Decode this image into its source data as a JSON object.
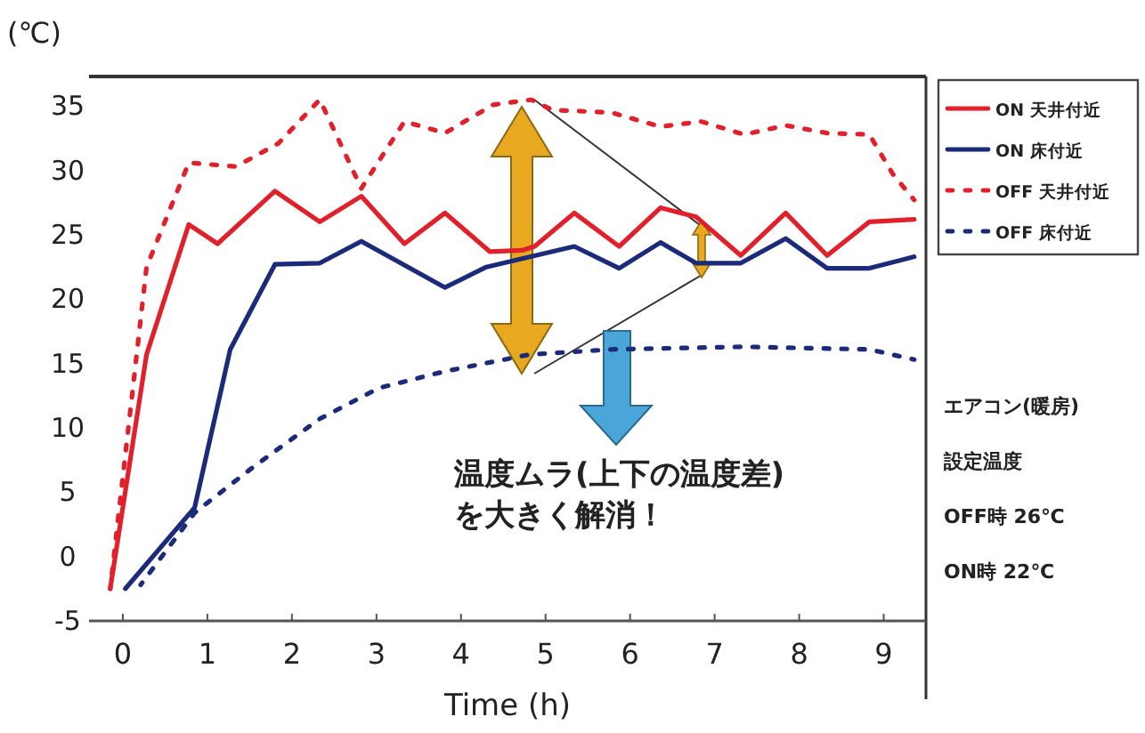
{
  "chart_data": {
    "type": "line",
    "ylabel": "(℃)",
    "xlabel": "Time (h)",
    "xlim": [
      -0.4,
      9.5
    ],
    "xticks": [
      0,
      1,
      2,
      3,
      4,
      5,
      6,
      7,
      8,
      9
    ],
    "ylim": [
      -5,
      37.3
    ],
    "yticks": [
      -5,
      0,
      5,
      10,
      15,
      20,
      25,
      30,
      35
    ],
    "grid": false,
    "legend": "right",
    "marker": "none",
    "series": [
      {
        "name": "ON 天井付近",
        "color": "#e0202a",
        "line_style": "solid",
        "x": [
          -0.15,
          0.28,
          0.78,
          1.12,
          1.8,
          2.33,
          2.82,
          3.33,
          3.81,
          4.34,
          4.72,
          4.87,
          5.34,
          5.87,
          6.36,
          6.78,
          7.31,
          7.84,
          8.33,
          8.83,
          9.36
        ],
        "values": [
          -2.5,
          15.7,
          25.8,
          24.3,
          28.4,
          26.0,
          28.0,
          24.3,
          26.7,
          23.7,
          23.8,
          24.1,
          26.7,
          24.1,
          27.1,
          26.4,
          23.4,
          26.7,
          23.4,
          26.0,
          26.2
        ]
      },
      {
        "name": "ON 床付近",
        "color": "#1c2a7a",
        "line_style": "solid",
        "x": [
          0.03,
          0.85,
          1.27,
          1.8,
          2.33,
          2.82,
          3.81,
          4.3,
          5.08,
          5.34,
          5.87,
          6.36,
          6.78,
          7.31,
          7.84,
          8.33,
          8.83,
          9.36
        ],
        "values": [
          -2.5,
          3.8,
          16.1,
          22.7,
          22.8,
          24.5,
          20.9,
          22.5,
          23.7,
          24.1,
          22.4,
          24.4,
          22.8,
          22.8,
          24.7,
          22.4,
          22.4,
          23.3
        ]
      },
      {
        "name": "OFF 天井付近",
        "color": "#e0202a",
        "line_style": "dotted",
        "x": [
          -0.15,
          0,
          0.28,
          0.78,
          1.34,
          1.84,
          2.33,
          2.82,
          3.33,
          3.81,
          4.38,
          4.83,
          5.08,
          5.78,
          6.36,
          6.84,
          7.35,
          7.84,
          8.33,
          8.83,
          9.11,
          9.36
        ],
        "values": [
          -2.5,
          6.2,
          22.5,
          30.6,
          30.3,
          32.1,
          35.5,
          28.6,
          33.8,
          32.9,
          35.1,
          35.5,
          34.7,
          34.5,
          33.4,
          33.8,
          32.8,
          33.5,
          32.9,
          32.8,
          29.7,
          27.7
        ]
      },
      {
        "name": "OFF 床付近",
        "color": "#1c2a7a",
        "line_style": "dotted",
        "x": [
          0.21,
          0.85,
          1.55,
          2.33,
          3.03,
          3.81,
          4.81,
          5.78,
          7.35,
          8.83,
          9.36
        ],
        "values": [
          -2.2,
          3.4,
          7.0,
          10.7,
          13.1,
          14.4,
          15.7,
          16.1,
          16.3,
          16.1,
          15.3
        ]
      }
    ],
    "annotations": [
      "温度ムラ(上下の温度差)\nを大きく解消！",
      "エアコン(暖房)",
      "設定温度",
      "OFF時 26℃",
      "ON時 22℃"
    ]
  }
}
